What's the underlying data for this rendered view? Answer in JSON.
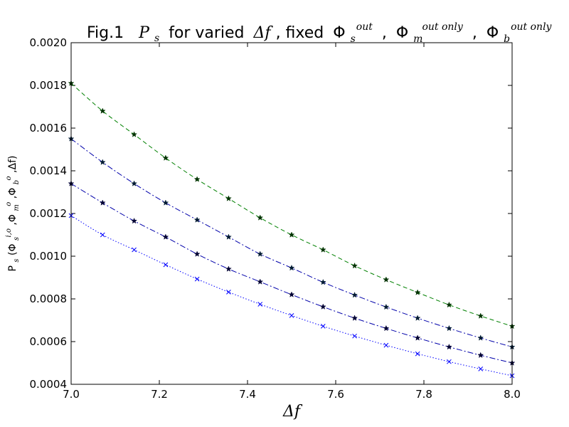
{
  "chart_data": {
    "type": "line",
    "title": {
      "prefix": "Fig.1",
      "math_var": "P",
      "math_sub": "s",
      "middle": "for varied",
      "delta_var": "Δf",
      "fixed": ", fixed",
      "phi": "Φ",
      "phi_s_sub": "s",
      "phi_s_sup": "out",
      "sep": ",",
      "phi_m_sub": "m",
      "phi_m_sup": "out only",
      "phi_b_sub": "b",
      "phi_b_sup": "out only"
    },
    "xlabel": "Δf",
    "ylabel": {
      "main": "P",
      "sub": "s",
      "args_open": "(Φ",
      "phi1_sub": "s",
      "phi1_sup": "i,o",
      "comma1": ",Φ",
      "phi2_sub": "m",
      "phi2_sup": "o",
      "comma2": ",Φ",
      "phi3_sub": "b",
      "phi3_sup": "o",
      "args_close": ",Δf)"
    },
    "xlim": [
      7.0,
      8.0
    ],
    "ylim": [
      0.0004,
      0.002
    ],
    "xticks": [
      "7.0",
      "7.2",
      "7.4",
      "7.6",
      "7.8",
      "8.0"
    ],
    "xtick_values": [
      7.0,
      7.2,
      7.4,
      7.6,
      7.8,
      8.0
    ],
    "yticks": [
      "0.0004",
      "0.0006",
      "0.0008",
      "0.0010",
      "0.0012",
      "0.0014",
      "0.0016",
      "0.0018",
      "0.0020"
    ],
    "ytick_values": [
      0.0004,
      0.0006,
      0.0008,
      0.001,
      0.0012,
      0.0014,
      0.0016,
      0.0018,
      0.002
    ],
    "grid": false,
    "x": [
      7.0,
      7.0714,
      7.1429,
      7.2143,
      7.2857,
      7.3571,
      7.4286,
      7.5,
      7.5714,
      7.6429,
      7.7143,
      7.7857,
      7.8571,
      7.9286,
      8.0
    ],
    "series": [
      {
        "color": "#008000",
        "line_style": "dashed",
        "marker": "star",
        "marker_color": "#003300",
        "values": [
          0.00181,
          0.00168,
          0.00157,
          0.00146,
          0.00136,
          0.00127,
          0.00118,
          0.0011,
          0.00103,
          0.000955,
          0.00089,
          0.00083,
          0.000772,
          0.00072,
          0.000672
        ]
      },
      {
        "color": "#0000aa",
        "line_style": "dashdot",
        "marker": "star",
        "marker_color": "#001a33",
        "values": [
          0.00155,
          0.00144,
          0.00134,
          0.00125,
          0.00117,
          0.00109,
          0.00101,
          0.000945,
          0.000878,
          0.000818,
          0.000762,
          0.00071,
          0.000662,
          0.000617,
          0.000575
        ]
      },
      {
        "color": "#0000aa",
        "line_style": "dashdot",
        "marker": "star",
        "marker_color": "#000033",
        "values": [
          0.00134,
          0.00125,
          0.001165,
          0.00109,
          0.00101,
          0.00094,
          0.00088,
          0.00082,
          0.000763,
          0.00071,
          0.000662,
          0.000617,
          0.000575,
          0.000536,
          0.0005
        ]
      },
      {
        "color": "#0000ff",
        "line_style": "dotted",
        "marker": "x",
        "marker_color": "#0000ff",
        "values": [
          0.00119,
          0.0011,
          0.00103,
          0.00096,
          0.000893,
          0.000832,
          0.000775,
          0.000722,
          0.000672,
          0.000626,
          0.000583,
          0.000543,
          0.000506,
          0.000472,
          0.00044
        ]
      }
    ]
  }
}
